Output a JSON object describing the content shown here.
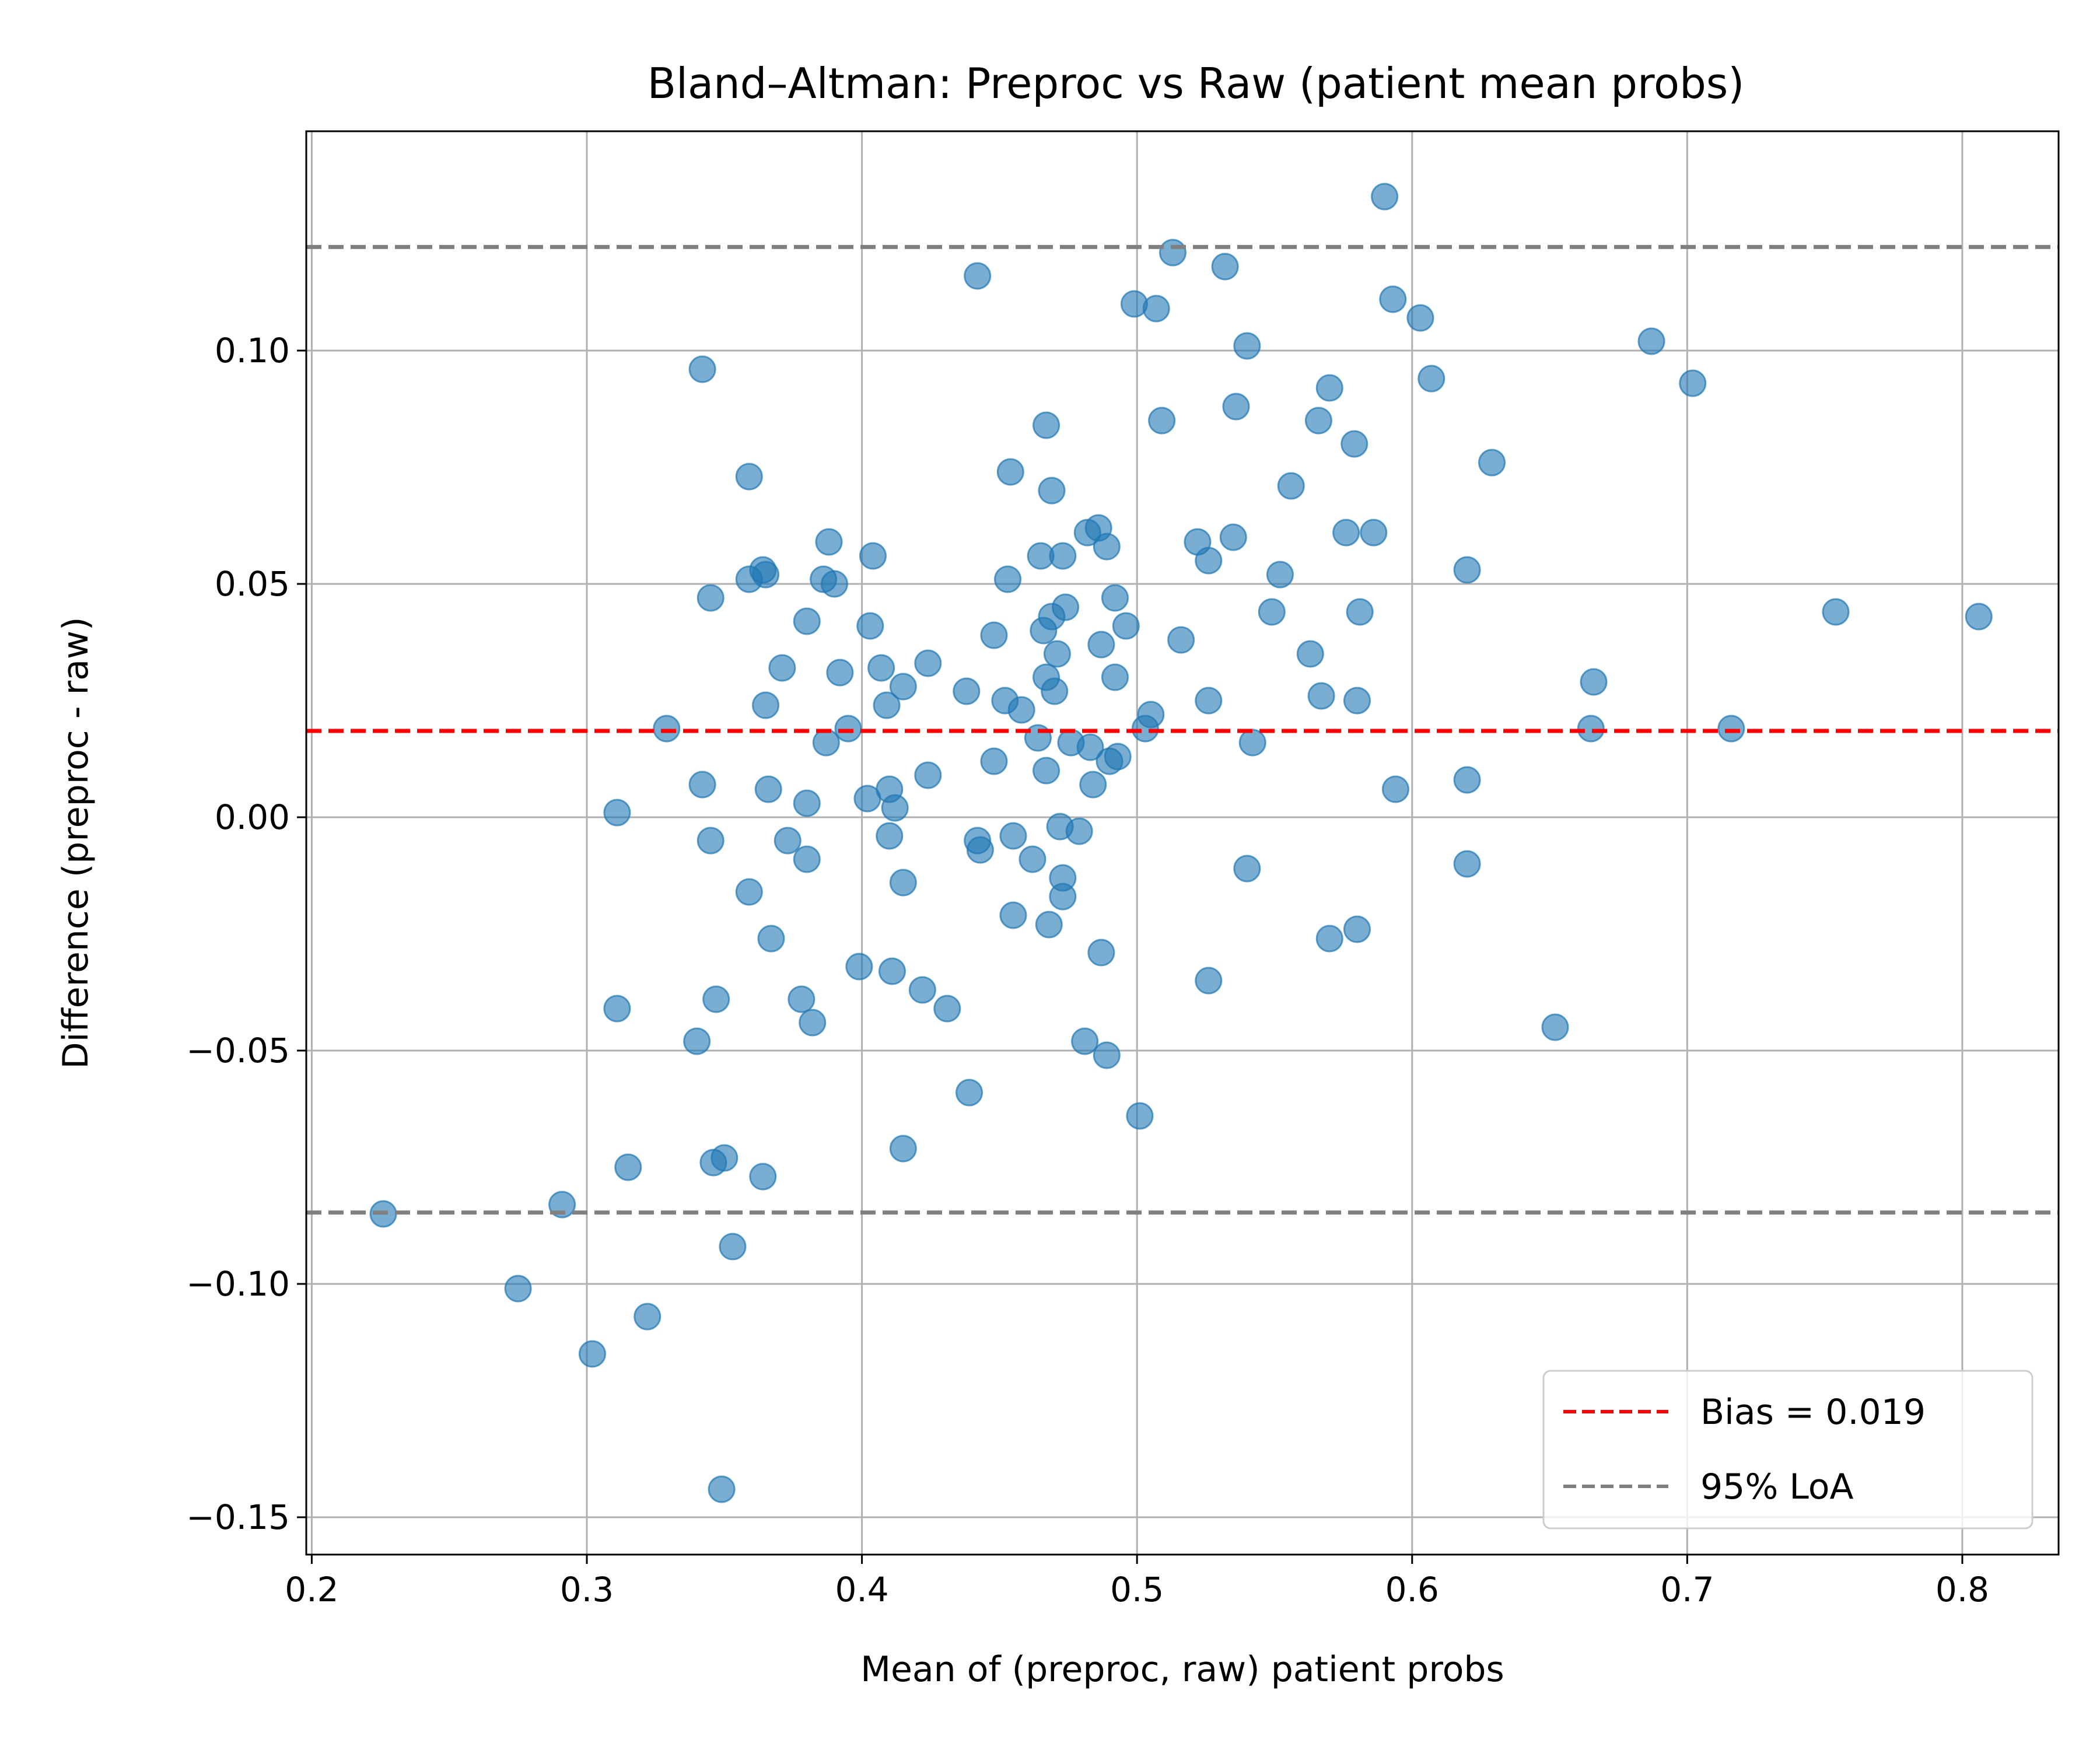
{
  "chart_data": {
    "type": "scatter",
    "title": "Bland–Altman: Preproc vs Raw (patient mean probs)",
    "xlabel": "Mean of (preproc, raw) patient probs",
    "ylabel": "Difference (preproc - raw)",
    "xlim": [
      0.198,
      0.835
    ],
    "ylim": [
      -0.158,
      0.147
    ],
    "xticks": [
      0.2,
      0.3,
      0.4,
      0.5,
      0.6,
      0.7,
      0.8
    ],
    "xtick_labels": [
      "0.2",
      "0.3",
      "0.4",
      "0.5",
      "0.6",
      "0.7",
      "0.8"
    ],
    "yticks": [
      -0.15,
      -0.1,
      -0.05,
      0.0,
      0.05,
      0.1
    ],
    "ytick_labels": [
      "−0.15",
      "−0.10",
      "−0.05",
      "0.00",
      "0.05",
      "0.10"
    ],
    "grid": true,
    "legend_position": "bottom-right",
    "colors": {
      "points": "#1f77b4",
      "bias": "#ff0000",
      "loa": "#808080",
      "grid": "#b0b0b0"
    },
    "reference_lines": [
      {
        "name": "Bias = 0.019",
        "y": 0.0185,
        "style": "dashed",
        "color": "#ff0000"
      },
      {
        "name": "95% LoA",
        "y": 0.1222,
        "style": "dashed",
        "color": "#808080"
      },
      {
        "y": -0.0847,
        "style": "dashed",
        "color": "#808080"
      }
    ],
    "legend": [
      {
        "label": "Bias = 0.019",
        "color": "#ff0000"
      },
      {
        "label": "95% LoA",
        "color": "#808080"
      }
    ],
    "points": [
      [
        0.226,
        -0.085
      ],
      [
        0.275,
        -0.101
      ],
      [
        0.291,
        -0.083
      ],
      [
        0.302,
        -0.115
      ],
      [
        0.311,
        0.001
      ],
      [
        0.311,
        -0.041
      ],
      [
        0.315,
        -0.075
      ],
      [
        0.322,
        -0.107
      ],
      [
        0.329,
        0.019
      ],
      [
        0.34,
        -0.048
      ],
      [
        0.342,
        0.096
      ],
      [
        0.342,
        0.007
      ],
      [
        0.345,
        0.047
      ],
      [
        0.345,
        -0.005
      ],
      [
        0.346,
        -0.074
      ],
      [
        0.347,
        -0.039
      ],
      [
        0.349,
        -0.144
      ],
      [
        0.35,
        -0.073
      ],
      [
        0.353,
        -0.092
      ],
      [
        0.359,
        0.073
      ],
      [
        0.359,
        0.051
      ],
      [
        0.359,
        -0.016
      ],
      [
        0.364,
        0.053
      ],
      [
        0.364,
        -0.077
      ],
      [
        0.365,
        0.052
      ],
      [
        0.365,
        0.024
      ],
      [
        0.366,
        0.006
      ],
      [
        0.367,
        -0.026
      ],
      [
        0.371,
        0.032
      ],
      [
        0.373,
        -0.005
      ],
      [
        0.378,
        -0.039
      ],
      [
        0.38,
        0.042
      ],
      [
        0.38,
        0.003
      ],
      [
        0.38,
        -0.009
      ],
      [
        0.382,
        -0.044
      ],
      [
        0.386,
        0.051
      ],
      [
        0.387,
        0.016
      ],
      [
        0.388,
        0.059
      ],
      [
        0.39,
        0.05
      ],
      [
        0.392,
        0.031
      ],
      [
        0.395,
        0.019
      ],
      [
        0.399,
        -0.032
      ],
      [
        0.402,
        0.004
      ],
      [
        0.403,
        0.041
      ],
      [
        0.404,
        0.056
      ],
      [
        0.407,
        0.032
      ],
      [
        0.409,
        0.024
      ],
      [
        0.41,
        0.006
      ],
      [
        0.41,
        -0.004
      ],
      [
        0.411,
        -0.033
      ],
      [
        0.412,
        0.002
      ],
      [
        0.415,
        0.028
      ],
      [
        0.415,
        -0.014
      ],
      [
        0.415,
        -0.071
      ],
      [
        0.422,
        -0.037
      ],
      [
        0.424,
        0.033
      ],
      [
        0.424,
        0.009
      ],
      [
        0.431,
        -0.041
      ],
      [
        0.438,
        0.027
      ],
      [
        0.439,
        -0.059
      ],
      [
        0.442,
        0.116
      ],
      [
        0.442,
        -0.005
      ],
      [
        0.443,
        -0.007
      ],
      [
        0.448,
        0.039
      ],
      [
        0.448,
        0.012
      ],
      [
        0.452,
        0.025
      ],
      [
        0.453,
        0.051
      ],
      [
        0.454,
        0.074
      ],
      [
        0.455,
        -0.004
      ],
      [
        0.455,
        -0.021
      ],
      [
        0.458,
        0.023
      ],
      [
        0.462,
        -0.009
      ],
      [
        0.464,
        0.017
      ],
      [
        0.465,
        0.056
      ],
      [
        0.466,
        0.04
      ],
      [
        0.467,
        0.084
      ],
      [
        0.467,
        0.01
      ],
      [
        0.467,
        0.03
      ],
      [
        0.468,
        -0.023
      ],
      [
        0.469,
        0.07
      ],
      [
        0.469,
        0.043
      ],
      [
        0.47,
        0.027
      ],
      [
        0.471,
        0.035
      ],
      [
        0.472,
        -0.002
      ],
      [
        0.473,
        0.056
      ],
      [
        0.473,
        -0.013
      ],
      [
        0.473,
        -0.017
      ],
      [
        0.474,
        0.045
      ],
      [
        0.476,
        0.016
      ],
      [
        0.479,
        -0.003
      ],
      [
        0.481,
        -0.048
      ],
      [
        0.482,
        0.061
      ],
      [
        0.483,
        0.015
      ],
      [
        0.484,
        0.007
      ],
      [
        0.486,
        0.062
      ],
      [
        0.487,
        0.037
      ],
      [
        0.487,
        -0.029
      ],
      [
        0.489,
        0.058
      ],
      [
        0.489,
        -0.051
      ],
      [
        0.49,
        0.012
      ],
      [
        0.492,
        0.047
      ],
      [
        0.492,
        0.03
      ],
      [
        0.493,
        0.013
      ],
      [
        0.496,
        0.041
      ],
      [
        0.499,
        0.11
      ],
      [
        0.501,
        -0.064
      ],
      [
        0.503,
        0.019
      ],
      [
        0.505,
        0.022
      ],
      [
        0.507,
        0.109
      ],
      [
        0.509,
        0.085
      ],
      [
        0.513,
        0.121
      ],
      [
        0.516,
        0.038
      ],
      [
        0.522,
        0.059
      ],
      [
        0.526,
        0.055
      ],
      [
        0.526,
        0.025
      ],
      [
        0.526,
        -0.035
      ],
      [
        0.532,
        0.118
      ],
      [
        0.535,
        0.06
      ],
      [
        0.536,
        0.088
      ],
      [
        0.54,
        0.101
      ],
      [
        0.54,
        -0.011
      ],
      [
        0.542,
        0.016
      ],
      [
        0.549,
        0.044
      ],
      [
        0.552,
        0.052
      ],
      [
        0.556,
        0.071
      ],
      [
        0.563,
        0.035
      ],
      [
        0.566,
        0.085
      ],
      [
        0.567,
        0.026
      ],
      [
        0.57,
        0.092
      ],
      [
        0.57,
        -0.026
      ],
      [
        0.576,
        0.061
      ],
      [
        0.579,
        0.08
      ],
      [
        0.58,
        0.025
      ],
      [
        0.58,
        -0.024
      ],
      [
        0.581,
        0.044
      ],
      [
        0.586,
        0.061
      ],
      [
        0.59,
        0.133
      ],
      [
        0.593,
        0.111
      ],
      [
        0.594,
        0.006
      ],
      [
        0.603,
        0.107
      ],
      [
        0.607,
        0.094
      ],
      [
        0.62,
        0.053
      ],
      [
        0.62,
        0.008
      ],
      [
        0.62,
        -0.01
      ],
      [
        0.629,
        0.076
      ],
      [
        0.652,
        -0.045
      ],
      [
        0.665,
        0.019
      ],
      [
        0.666,
        0.029
      ],
      [
        0.687,
        0.102
      ],
      [
        0.702,
        0.093
      ],
      [
        0.716,
        0.019
      ],
      [
        0.754,
        0.044
      ],
      [
        0.806,
        0.043
      ]
    ]
  }
}
